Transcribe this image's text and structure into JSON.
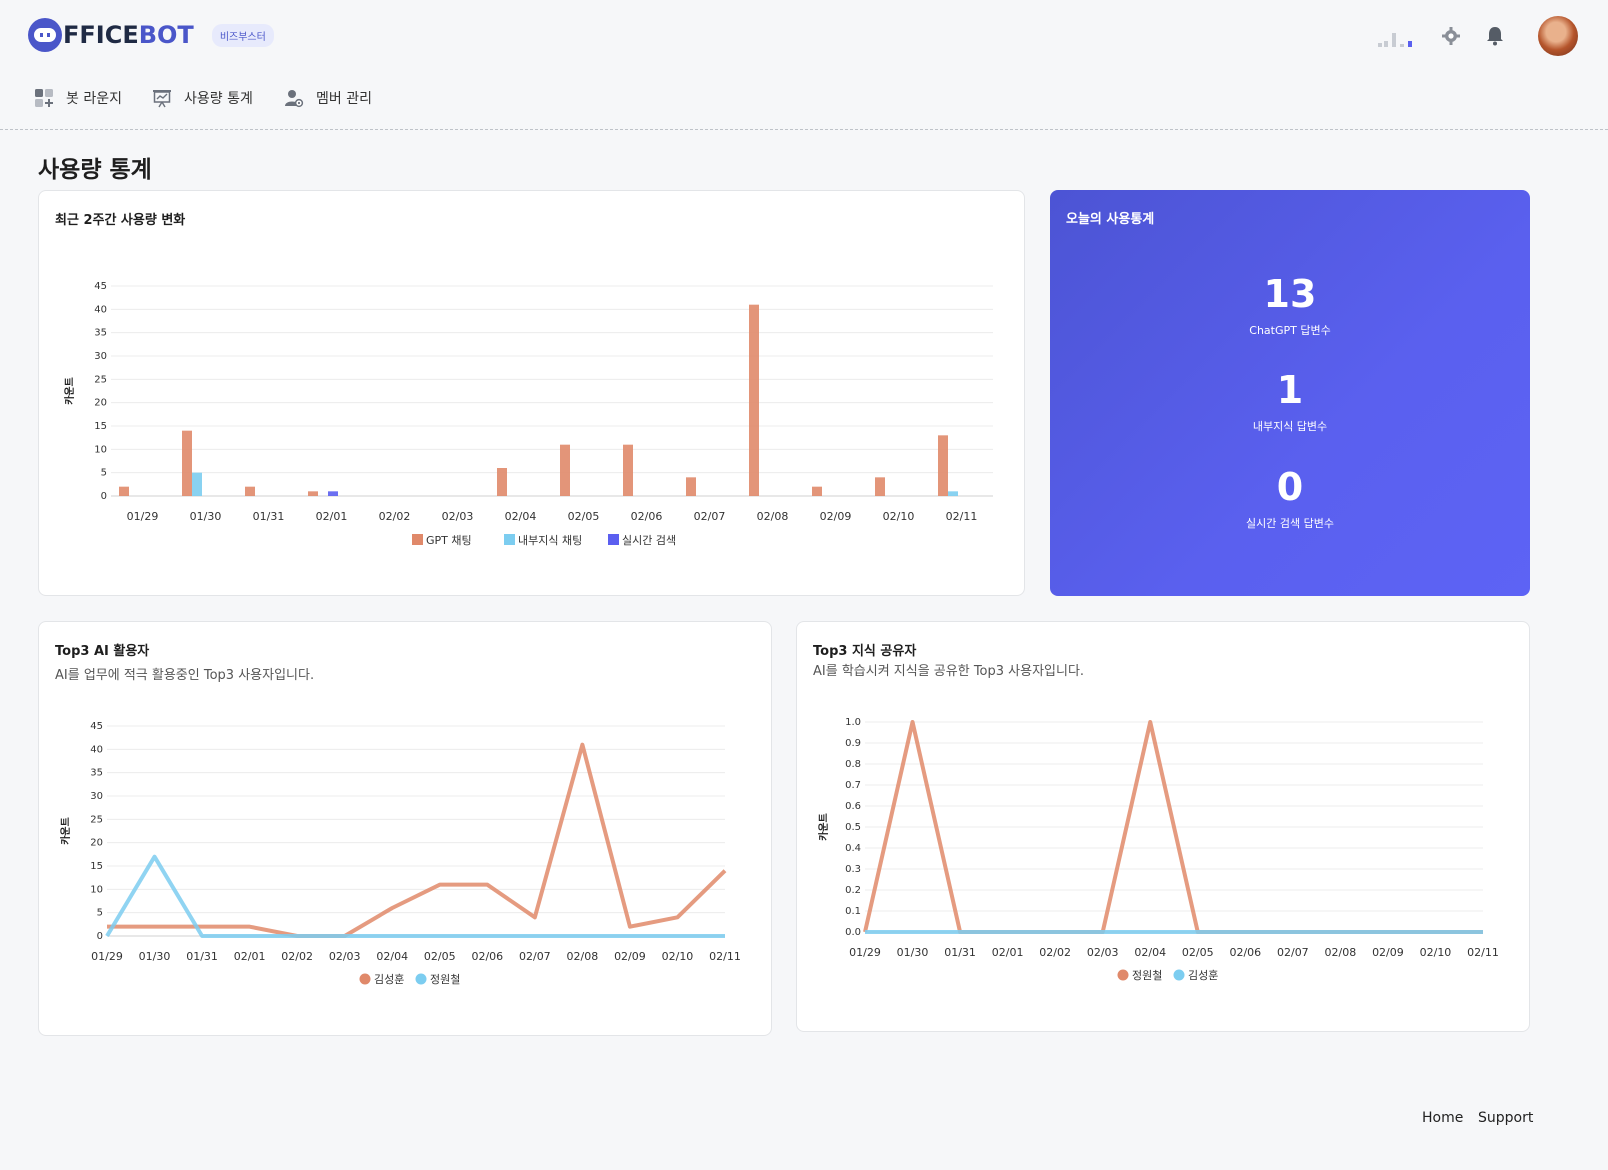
{
  "header": {
    "logo_text_prefix": "",
    "logo_text_mid": "FFICE",
    "logo_text_suffix": "BOT",
    "badge": "비즈부스터",
    "icons": [
      "signal-icon",
      "gear-icon",
      "bell-icon",
      "avatar"
    ]
  },
  "nav": {
    "items": [
      {
        "label": "봇 라운지",
        "icon": "grid-plus-icon"
      },
      {
        "label": "사용량 통계",
        "icon": "presentation-chart-icon"
      },
      {
        "label": "멤버 관리",
        "icon": "user-gear-icon"
      }
    ]
  },
  "page": {
    "title": "사용량 통계"
  },
  "usage_card": {
    "title": "최근 2주간 사용량 변화"
  },
  "stats_card": {
    "title": "오늘의 사용통계",
    "items": [
      {
        "value": "13",
        "label": "ChatGPT 답변수"
      },
      {
        "value": "1",
        "label": "내부지식 답변수"
      },
      {
        "value": "0",
        "label": "실시간 검색 답변수"
      }
    ]
  },
  "top3_ai": {
    "title": "Top3 AI 활용자",
    "subtitle": "AI를 업무에 적극 활용중인 Top3 사용자입니다."
  },
  "top3_knowledge": {
    "title": "Top3 지식 공유자",
    "subtitle": "AI를 학습시켜 지식을 공유한 Top3 사용자입니다."
  },
  "footer": {
    "home": "Home",
    "support": "Support"
  },
  "colors": {
    "orange": "#e0896a",
    "sky": "#7ccdf0",
    "blue": "#5b5ff0",
    "accent": "#5a60ef"
  },
  "chart_data": [
    {
      "type": "bar",
      "categories": [
        "01/29",
        "01/30",
        "01/31",
        "02/01",
        "02/02",
        "02/03",
        "02/04",
        "02/05",
        "02/06",
        "02/07",
        "02/08",
        "02/09",
        "02/10",
        "02/11"
      ],
      "ylabel": "카운트",
      "ylim": [
        0,
        45
      ],
      "yticks": [
        0,
        5,
        10,
        15,
        20,
        25,
        30,
        35,
        40,
        45
      ],
      "legend": "bottom",
      "series": [
        {
          "name": "GPT 채팅",
          "color": "#e0896a",
          "values": [
            2,
            14,
            2,
            1,
            0,
            0,
            6,
            11,
            11,
            4,
            41,
            2,
            4,
            13
          ]
        },
        {
          "name": "내부지식 채팅",
          "color": "#7ccdf0",
          "values": [
            0,
            5,
            0,
            0,
            0,
            0,
            0,
            0,
            0,
            0,
            0,
            0,
            0,
            1
          ]
        },
        {
          "name": "실시간 검색",
          "color": "#5b5ff0",
          "values": [
            0,
            0,
            0,
            1,
            0,
            0,
            0,
            0,
            0,
            0,
            0,
            0,
            0,
            0
          ]
        }
      ]
    },
    {
      "type": "line",
      "categories": [
        "01/29",
        "01/30",
        "01/31",
        "02/01",
        "02/02",
        "02/03",
        "02/04",
        "02/05",
        "02/06",
        "02/07",
        "02/08",
        "02/09",
        "02/10",
        "02/11"
      ],
      "ylabel": "카운트",
      "ylim": [
        0,
        45
      ],
      "yticks": [
        0,
        5,
        10,
        15,
        20,
        25,
        30,
        35,
        40,
        45
      ],
      "legend": "bottom",
      "series": [
        {
          "name": "김성훈",
          "color": "#e0896a",
          "values": [
            2,
            2,
            2,
            2,
            0,
            0,
            6,
            11,
            11,
            4,
            41,
            2,
            4,
            14
          ]
        },
        {
          "name": "정원철",
          "color": "#7ccdf0",
          "values": [
            0,
            17,
            0,
            0,
            0,
            0,
            0,
            0,
            0,
            0,
            0,
            0,
            0,
            0
          ]
        }
      ]
    },
    {
      "type": "line",
      "categories": [
        "01/29",
        "01/30",
        "01/31",
        "02/01",
        "02/02",
        "02/03",
        "02/04",
        "02/05",
        "02/06",
        "02/07",
        "02/08",
        "02/09",
        "02/10",
        "02/11"
      ],
      "ylabel": "카운트",
      "ylim": [
        0,
        1
      ],
      "yticks": [
        "0.0",
        "0.1",
        "0.2",
        "0.3",
        "0.4",
        "0.5",
        "0.6",
        "0.7",
        "0.8",
        "0.9",
        "1.0"
      ],
      "legend": "bottom",
      "series": [
        {
          "name": "정원철",
          "color": "#e0896a",
          "values": [
            0,
            1,
            0,
            0,
            0,
            0,
            1,
            0,
            0,
            0,
            0,
            0,
            0,
            0
          ]
        },
        {
          "name": "김성훈",
          "color": "#7ccdf0",
          "values": [
            0,
            0,
            0,
            0,
            0,
            0,
            0,
            0,
            0,
            0,
            0,
            0,
            0,
            0
          ]
        }
      ]
    }
  ]
}
